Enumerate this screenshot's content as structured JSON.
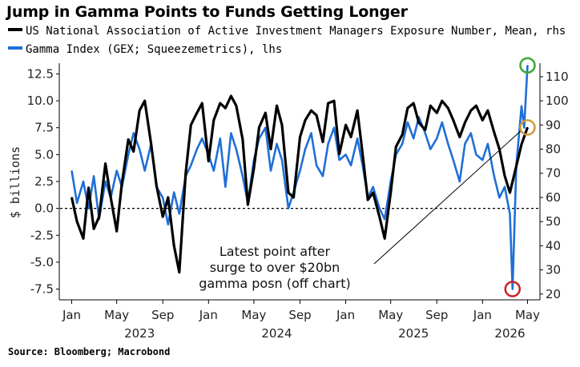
{
  "title": "Jump in Gamma Points to Funds Getting Longer",
  "legend": [
    {
      "label": "US National Association of Active Investment Managers Exposure Number, Mean, rhs",
      "color": "#000000"
    },
    {
      "label": "Gamma Index (GEX; Squeezemetrics), lhs",
      "color": "#1f6fd6"
    }
  ],
  "source": "Source: Bloomberg; Macrobond",
  "chart_data": {
    "type": "line",
    "ylabel_left": "$ billions",
    "y_left_ticks": [
      "12.5",
      "10.0",
      "7.5",
      "5.0",
      "2.5",
      "0.0",
      "-2.5",
      "-5.0",
      "-7.5"
    ],
    "y_left_range": [
      -8.5,
      13.5
    ],
    "y_right_ticks": [
      "110",
      "100",
      "90",
      "80",
      "70",
      "60",
      "50",
      "40",
      "30",
      "20"
    ],
    "y_right_range": [
      17.6,
      115.6
    ],
    "x_month_labels": [
      "Jan",
      "May",
      "Sep",
      "Jan",
      "May",
      "Sep",
      "Jan",
      "May",
      "Sep",
      "Jan",
      "May"
    ],
    "x_year_labels": [
      "2023",
      "2024",
      "2025",
      "2026"
    ],
    "x_range": [
      "2022-12-01",
      "2026-06-01"
    ],
    "reference_line_left": 0,
    "annotation": [
      "Latest point after",
      "surge to over $20bn",
      "gamma posn (off chart)"
    ],
    "series": [
      {
        "name": "US National Association of Active Investment Managers Exposure Number, Mean, rhs",
        "axis": "right",
        "color": "#000000",
        "points": [
          [
            "2023-01-01",
            60
          ],
          [
            "2023-01-15",
            50
          ],
          [
            "2023-02-01",
            43
          ],
          [
            "2023-02-15",
            64
          ],
          [
            "2023-03-01",
            47
          ],
          [
            "2023-03-15",
            52
          ],
          [
            "2023-04-01",
            74
          ],
          [
            "2023-04-15",
            60
          ],
          [
            "2023-05-01",
            46
          ],
          [
            "2023-05-15",
            66
          ],
          [
            "2023-06-01",
            84
          ],
          [
            "2023-06-15",
            79
          ],
          [
            "2023-07-01",
            96
          ],
          [
            "2023-07-15",
            100
          ],
          [
            "2023-08-01",
            82
          ],
          [
            "2023-08-15",
            65
          ],
          [
            "2023-09-01",
            52
          ],
          [
            "2023-09-15",
            60
          ],
          [
            "2023-10-01",
            40
          ],
          [
            "2023-10-15",
            29
          ],
          [
            "2023-11-01",
            70
          ],
          [
            "2023-11-15",
            90
          ],
          [
            "2023-12-01",
            95
          ],
          [
            "2023-12-15",
            99
          ],
          [
            "2024-01-01",
            75
          ],
          [
            "2024-01-15",
            92
          ],
          [
            "2024-02-01",
            99
          ],
          [
            "2024-02-15",
            97
          ],
          [
            "2024-03-01",
            102
          ],
          [
            "2024-03-15",
            98
          ],
          [
            "2024-04-01",
            84
          ],
          [
            "2024-04-15",
            57
          ],
          [
            "2024-05-01",
            72
          ],
          [
            "2024-05-15",
            89
          ],
          [
            "2024-06-01",
            95
          ],
          [
            "2024-06-15",
            80
          ],
          [
            "2024-07-01",
            98
          ],
          [
            "2024-07-15",
            90
          ],
          [
            "2024-08-01",
            62
          ],
          [
            "2024-08-15",
            60
          ],
          [
            "2024-09-01",
            85
          ],
          [
            "2024-09-15",
            92
          ],
          [
            "2024-10-01",
            96
          ],
          [
            "2024-10-15",
            94
          ],
          [
            "2024-11-01",
            83
          ],
          [
            "2024-11-15",
            99
          ],
          [
            "2024-12-01",
            100
          ],
          [
            "2024-12-15",
            78
          ],
          [
            "2025-01-01",
            90
          ],
          [
            "2025-01-15",
            85
          ],
          [
            "2025-02-01",
            96
          ],
          [
            "2025-02-15",
            78
          ],
          [
            "2025-03-01",
            59
          ],
          [
            "2025-03-15",
            62
          ],
          [
            "2025-04-01",
            52
          ],
          [
            "2025-04-15",
            43
          ],
          [
            "2025-05-01",
            62
          ],
          [
            "2025-05-15",
            81
          ],
          [
            "2025-06-01",
            86
          ],
          [
            "2025-06-15",
            97
          ],
          [
            "2025-07-01",
            99
          ],
          [
            "2025-07-15",
            91
          ],
          [
            "2025-08-01",
            88
          ],
          [
            "2025-08-15",
            98
          ],
          [
            "2025-09-01",
            95
          ],
          [
            "2025-09-15",
            100
          ],
          [
            "2025-10-01",
            97
          ],
          [
            "2025-10-15",
            92
          ],
          [
            "2025-11-01",
            85
          ],
          [
            "2025-11-15",
            91
          ],
          [
            "2025-12-01",
            96
          ],
          [
            "2025-12-15",
            98
          ],
          [
            "2026-01-01",
            92
          ],
          [
            "2026-01-15",
            96
          ],
          [
            "2026-02-01",
            87
          ],
          [
            "2026-02-15",
            80
          ],
          [
            "2026-03-01",
            69
          ],
          [
            "2026-03-15",
            62
          ],
          [
            "2026-04-01",
            73
          ],
          [
            "2026-04-15",
            82
          ],
          [
            "2026-05-01",
            89
          ]
        ]
      },
      {
        "name": "Gamma Index (GEX; Squeezemetrics), lhs",
        "axis": "left",
        "color": "#1f6fd6",
        "points": [
          [
            "2023-01-01",
            3.5
          ],
          [
            "2023-01-15",
            0.5
          ],
          [
            "2023-02-01",
            2.5
          ],
          [
            "2023-02-15",
            0.0
          ],
          [
            "2023-03-01",
            3.0
          ],
          [
            "2023-03-15",
            -1.0
          ],
          [
            "2023-04-01",
            2.5
          ],
          [
            "2023-04-15",
            1.0
          ],
          [
            "2023-05-01",
            3.5
          ],
          [
            "2023-05-15",
            2.0
          ],
          [
            "2023-06-01",
            5.0
          ],
          [
            "2023-06-15",
            7.0
          ],
          [
            "2023-07-01",
            5.5
          ],
          [
            "2023-07-15",
            3.5
          ],
          [
            "2023-08-01",
            6.0
          ],
          [
            "2023-08-15",
            2.0
          ],
          [
            "2023-09-01",
            1.0
          ],
          [
            "2023-09-15",
            -1.5
          ],
          [
            "2023-10-01",
            1.5
          ],
          [
            "2023-10-15",
            -0.5
          ],
          [
            "2023-11-01",
            3.0
          ],
          [
            "2023-11-15",
            4.0
          ],
          [
            "2023-12-01",
            5.5
          ],
          [
            "2023-12-15",
            6.5
          ],
          [
            "2024-01-01",
            5.0
          ],
          [
            "2024-01-15",
            3.5
          ],
          [
            "2024-02-01",
            6.5
          ],
          [
            "2024-02-15",
            2.0
          ],
          [
            "2024-03-01",
            7.0
          ],
          [
            "2024-03-15",
            5.5
          ],
          [
            "2024-04-01",
            3.0
          ],
          [
            "2024-04-15",
            0.5
          ],
          [
            "2024-05-01",
            4.5
          ],
          [
            "2024-05-15",
            6.5
          ],
          [
            "2024-06-01",
            7.5
          ],
          [
            "2024-06-15",
            3.5
          ],
          [
            "2024-07-01",
            6.0
          ],
          [
            "2024-07-15",
            4.5
          ],
          [
            "2024-08-01",
            0.0
          ],
          [
            "2024-08-15",
            1.5
          ],
          [
            "2024-09-01",
            3.5
          ],
          [
            "2024-09-15",
            5.5
          ],
          [
            "2024-10-01",
            7.0
          ],
          [
            "2024-10-15",
            4.0
          ],
          [
            "2024-11-01",
            3.0
          ],
          [
            "2024-11-15",
            6.0
          ],
          [
            "2024-12-01",
            7.5
          ],
          [
            "2024-12-15",
            4.5
          ],
          [
            "2025-01-01",
            5.0
          ],
          [
            "2025-01-15",
            4.0
          ],
          [
            "2025-02-01",
            6.5
          ],
          [
            "2025-02-15",
            4.0
          ],
          [
            "2025-03-01",
            1.0
          ],
          [
            "2025-03-15",
            2.0
          ],
          [
            "2025-04-01",
            0.0
          ],
          [
            "2025-04-15",
            -1.0
          ],
          [
            "2025-05-01",
            2.5
          ],
          [
            "2025-05-15",
            5.0
          ],
          [
            "2025-06-01",
            6.0
          ],
          [
            "2025-06-15",
            8.0
          ],
          [
            "2025-07-01",
            6.5
          ],
          [
            "2025-07-15",
            8.5
          ],
          [
            "2025-08-01",
            7.0
          ],
          [
            "2025-08-15",
            5.5
          ],
          [
            "2025-09-01",
            6.5
          ],
          [
            "2025-09-15",
            8.0
          ],
          [
            "2025-10-01",
            6.0
          ],
          [
            "2025-10-15",
            4.5
          ],
          [
            "2025-11-01",
            2.5
          ],
          [
            "2025-11-15",
            6.0
          ],
          [
            "2025-12-01",
            7.0
          ],
          [
            "2025-12-15",
            5.0
          ],
          [
            "2026-01-01",
            4.5
          ],
          [
            "2026-01-15",
            6.0
          ],
          [
            "2026-02-01",
            3.0
          ],
          [
            "2026-02-15",
            1.0
          ],
          [
            "2026-03-01",
            2.0
          ],
          [
            "2026-03-15",
            -0.5
          ],
          [
            "2026-03-22",
            -7.5
          ],
          [
            "2026-04-01",
            4.0
          ],
          [
            "2026-04-15",
            9.5
          ],
          [
            "2026-04-22",
            7.5
          ],
          [
            "2026-05-01",
            13.3
          ]
        ]
      }
    ],
    "markers": [
      {
        "series": "Gamma Index (GEX; Squeezemetrics), lhs",
        "date": "2026-03-22",
        "color": "#c8202a"
      },
      {
        "series": "Gamma Index (GEX; Squeezemetrics), lhs",
        "date": "2026-05-01",
        "color": "#3aaa35"
      },
      {
        "series": "US National Association of Active Investment Managers Exposure Number, Mean, rhs",
        "date": "2026-05-01",
        "color": "#d19a3a"
      }
    ]
  }
}
